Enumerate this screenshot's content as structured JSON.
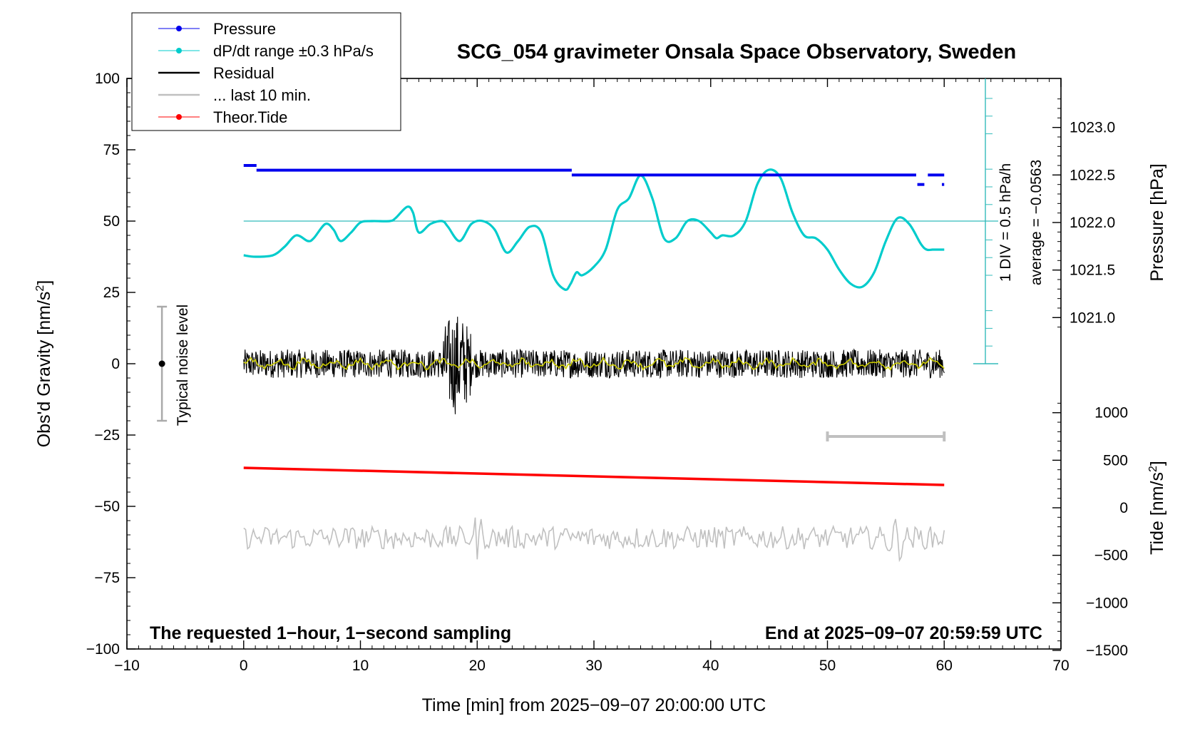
{
  "chart_data": {
    "type": "line",
    "title": "SCG_054 gravimeter Onsala Space Observatory, Sweden",
    "xlabel": "Time [min] from 2025−09−07 20:00:00 UTC",
    "ylabel_left": "Obs'd Gravity [nm/s",
    "ylabel_left_sup": "2",
    "ylabel_left_end": "]",
    "ylabel_pressure": "Pressure [hPa]",
    "ylabel_tide": "Tide [nm/s",
    "ylabel_tide_sup": "2",
    "ylabel_tide_end": "]",
    "xlim": [
      -10,
      70
    ],
    "ylim": [
      -100,
      100
    ],
    "x_ticks": [
      "−10",
      "0",
      "10",
      "20",
      "30",
      "40",
      "50",
      "60",
      "70"
    ],
    "y_ticks": [
      "−100",
      "−75",
      "−50",
      "−25",
      "0",
      "25",
      "50",
      "75",
      "100"
    ],
    "pressure_ticks": [
      "1021.0",
      "1021.5",
      "1022.0",
      "1022.5",
      "1023.0"
    ],
    "tide_ticks": [
      "−1500",
      "−1000",
      "−500",
      "0",
      "500",
      "1000"
    ],
    "legend": {
      "position": "top-left",
      "entries": [
        {
          "label": "Pressure",
          "color": "#0000ee"
        },
        {
          "label": "dP/dt range ±0.3 hPa/s",
          "color": "#00cccc"
        },
        {
          "label": "Residual",
          "color": "#000000"
        },
        {
          "label": "... last 10 min.",
          "color": "#c0c0c0"
        },
        {
          "label": "Theor.Tide",
          "color": "#ff0000"
        }
      ]
    },
    "annotations": {
      "noise_label": "Typical noise level",
      "noise_range": [
        -20,
        20
      ],
      "div_label": "1 DIV = 0.5 hPa/h",
      "average_label": "average = −0.0563",
      "left_footer": "The requested 1−hour, 1−second sampling",
      "right_footer": "End at 2025−09−07 20:59:59 UTC",
      "last10_range_min": [
        50,
        60
      ]
    },
    "series": [
      {
        "name": "Pressure",
        "unit": "hPa",
        "color": "#0000ee",
        "segments": [
          {
            "x": [
              0,
              1.1
            ],
            "y": 1022.6
          },
          {
            "x": [
              1.1,
              28.1
            ],
            "y": 1022.55
          },
          {
            "x": [
              28.1,
              57.6
            ],
            "y": 1022.5
          },
          {
            "x": [
              57.7,
              58.3
            ],
            "y": 1022.4
          },
          {
            "x": [
              58.6,
              60
            ],
            "y": 1022.5
          },
          {
            "x": [
              59.8,
              60
            ],
            "y": 1022.4
          }
        ]
      },
      {
        "name": "dP/dt range ±0.3 hPa/s",
        "color": "#00cccc",
        "x": [
          0,
          1,
          2.5,
          3.5,
          4.5,
          5.5,
          6,
          7,
          7.7,
          8.3,
          9.2,
          10,
          11,
          12.5,
          13,
          14,
          14.5,
          15,
          16,
          17,
          17.5,
          18.5,
          19.5,
          20.5,
          21.5,
          22.5,
          23.5,
          24.5,
          25.5,
          26.5,
          27.5,
          28,
          28.5,
          29,
          30,
          31,
          32,
          33,
          34,
          35,
          36,
          37,
          38,
          39,
          40,
          40.5,
          41,
          42,
          43,
          44,
          45,
          46,
          47,
          48,
          49,
          50,
          51,
          52,
          53,
          54,
          55,
          56,
          57,
          58,
          58.5,
          59,
          59.5,
          60
        ],
        "y": [
          38,
          37.5,
          38,
          41,
          45,
          43,
          44,
          49,
          47,
          43,
          46,
          49.5,
          50,
          50,
          51,
          55,
          53,
          46,
          49,
          50,
          48,
          43,
          49,
          50,
          47,
          39,
          43,
          48,
          46,
          31,
          26,
          28,
          32,
          31,
          34,
          40,
          54,
          58,
          66,
          58,
          44,
          44,
          50,
          50,
          46,
          44,
          45,
          45,
          50,
          63,
          68,
          65,
          53,
          45,
          44,
          40,
          33,
          28,
          27,
          32,
          43,
          51,
          49,
          42,
          40,
          40,
          40,
          40
        ]
      },
      {
        "name": "Residual",
        "color": "#000000",
        "mean": 0,
        "typical_range": [
          -5,
          5
        ],
        "burst_window_min": [
          17,
          19.5
        ],
        "burst_range": [
          -19,
          20
        ]
      },
      {
        "name": "Residual (smoothed)",
        "color": "#cccc00",
        "mean": 0,
        "typical_range": [
          -2,
          2
        ]
      },
      {
        "name": "... last 10 min.",
        "color": "#c0c0c0",
        "offset": -61,
        "typical_range": [
          -66,
          -56
        ]
      },
      {
        "name": "Theor.Tide",
        "color": "#ff0000",
        "x": [
          0,
          60
        ],
        "y": [
          -36.5,
          -42.5
        ]
      }
    ]
  }
}
